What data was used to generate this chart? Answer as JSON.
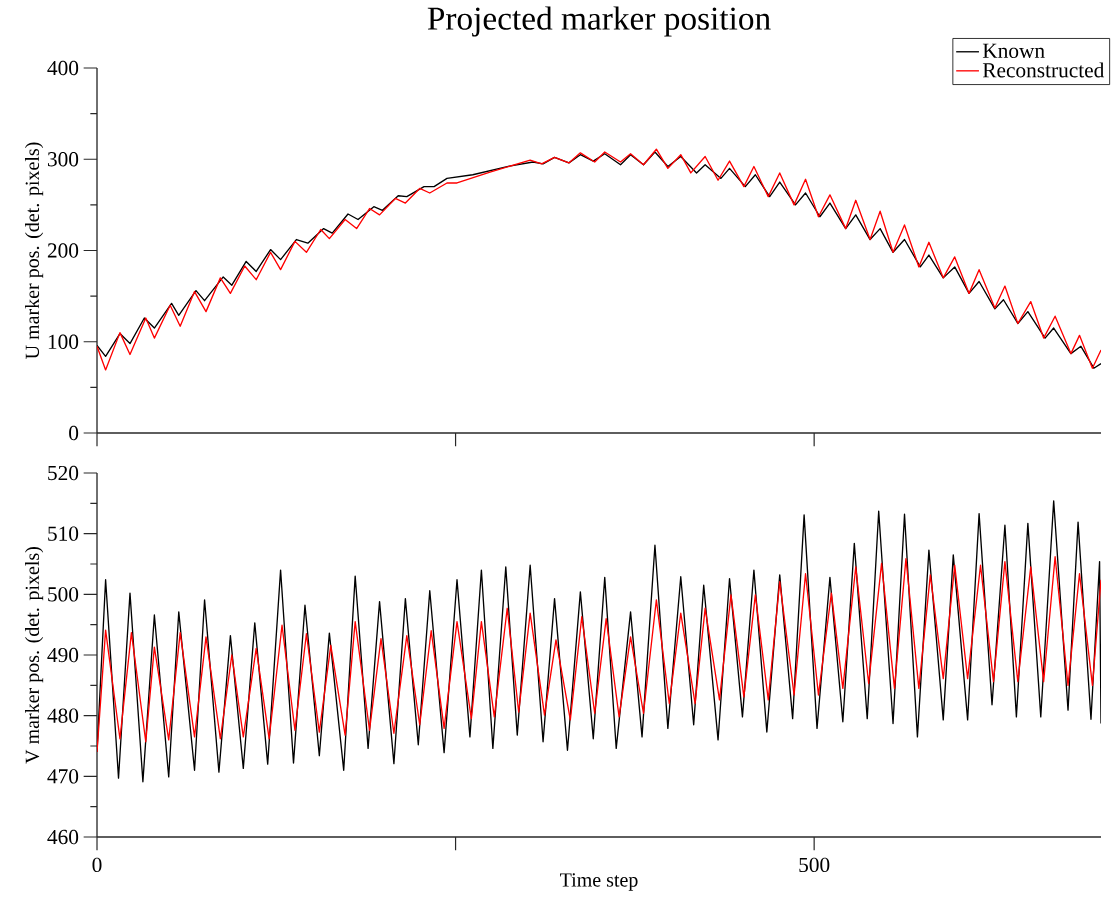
{
  "chart_data": [
    {
      "type": "line",
      "title": "Projected marker position",
      "ylabel": "U marker pos. (det. pixels)",
      "xlim": [
        0,
        700
      ],
      "xticks": [
        {
          "value": 0,
          "label": null
        },
        {
          "value": 250,
          "label": null
        },
        {
          "value": 500,
          "label": null
        }
      ],
      "ylim": [
        0,
        400
      ],
      "yticks": [
        0,
        100,
        200,
        300,
        400
      ],
      "tick_labels": "y",
      "legend": "top right",
      "series": [
        {
          "name": "Known",
          "color": "#000000",
          "x": [
            0,
            6,
            16,
            23,
            33,
            40,
            52,
            57,
            69,
            75,
            88,
            94,
            104,
            111,
            121,
            128,
            139,
            147,
            158,
            164,
            175,
            182,
            193,
            199,
            210,
            216,
            228,
            235,
            244,
            262,
            286,
            304,
            311,
            319,
            329,
            337,
            346,
            354,
            365,
            372,
            381,
            389,
            398,
            407,
            418,
            424,
            435,
            441,
            452,
            459,
            469,
            476,
            487,
            494,
            504,
            511,
            522,
            529,
            539,
            546,
            555,
            563,
            574,
            580,
            590,
            598,
            608,
            615,
            626,
            632,
            642,
            649,
            661,
            667,
            679,
            686,
            695,
            700
          ],
          "values": [
            96,
            84,
            109,
            98,
            126,
            115,
            142,
            129,
            156,
            145,
            171,
            162,
            188,
            177,
            201,
            190,
            212,
            208,
            224,
            219,
            240,
            234,
            248,
            244,
            260,
            259,
            270,
            270,
            279,
            283,
            292,
            297,
            295,
            302,
            296,
            305,
            298,
            306,
            294,
            305,
            294,
            308,
            292,
            303,
            285,
            294,
            279,
            290,
            270,
            283,
            259,
            275,
            250,
            263,
            237,
            252,
            224,
            239,
            212,
            224,
            198,
            212,
            182,
            195,
            170,
            182,
            153,
            166,
            136,
            146,
            120,
            133,
            104,
            115,
            87,
            95,
            71,
            76
          ]
        },
        {
          "name": "Reconstructed",
          "color": "#ff0000",
          "x": [
            0,
            6,
            16,
            23,
            34,
            40,
            51,
            58,
            68,
            76,
            86,
            93,
            103,
            111,
            121,
            128,
            138,
            146,
            156,
            162,
            173,
            181,
            190,
            197,
            208,
            215,
            225,
            232,
            244,
            251,
            274,
            302,
            310,
            319,
            329,
            337,
            347,
            354,
            365,
            372,
            381,
            390,
            398,
            407,
            414,
            424,
            433,
            441,
            451,
            458,
            468,
            476,
            486,
            494,
            503,
            511,
            522,
            529,
            539,
            546,
            555,
            563,
            573,
            580,
            590,
            598,
            608,
            615,
            626,
            633,
            642,
            651,
            660,
            668,
            679,
            685,
            694,
            700
          ],
          "values": [
            95,
            69,
            110,
            86,
            126,
            104,
            140,
            117,
            155,
            133,
            170,
            153,
            183,
            168,
            198,
            179,
            210,
            198,
            223,
            213,
            234,
            224,
            246,
            239,
            257,
            252,
            268,
            263,
            274,
            274,
            286,
            299,
            295,
            302,
            296,
            307,
            297,
            308,
            297,
            306,
            294,
            311,
            290,
            305,
            285,
            303,
            277,
            298,
            270,
            292,
            259,
            285,
            250,
            278,
            237,
            261,
            224,
            255,
            212,
            243,
            198,
            228,
            182,
            209,
            170,
            193,
            153,
            179,
            137,
            161,
            120,
            144,
            104,
            128,
            87,
            107,
            71,
            91
          ]
        }
      ]
    },
    {
      "type": "line",
      "xlabel": "Time step",
      "ylabel": "V marker pos. (det. pixels)",
      "xlim": [
        0,
        700
      ],
      "xticks": [
        0,
        {
          "value": 250,
          "label": null
        },
        500
      ],
      "ylim": [
        460,
        520
      ],
      "yticks": [
        460,
        470,
        480,
        490,
        500,
        510,
        520
      ],
      "series": [
        {
          "color": "#000000",
          "x": [
            0,
            6,
            15,
            23,
            32,
            40,
            50,
            57,
            68,
            75,
            85,
            93,
            102,
            110,
            119,
            128,
            137,
            145,
            155,
            162,
            172,
            180,
            189,
            197,
            207,
            215,
            224,
            232,
            242,
            251,
            260,
            268,
            276,
            285,
            293,
            302,
            311,
            319,
            328,
            337,
            346,
            354,
            362,
            372,
            380,
            389,
            398,
            407,
            416,
            423,
            433,
            441,
            450,
            458,
            467,
            476,
            485,
            493,
            502,
            511,
            520,
            528,
            537,
            545,
            555,
            563,
            572,
            580,
            590,
            597,
            607,
            615,
            624,
            633,
            641,
            649,
            658,
            667,
            677,
            684,
            693,
            699,
            700
          ],
          "values": [
            474,
            502.4,
            469.7,
            500.2,
            469.1,
            496.6,
            469.9,
            497.1,
            471.0,
            499.1,
            470.7,
            493.2,
            471.3,
            495.3,
            472.0,
            504.0,
            472.2,
            498.2,
            473.4,
            493.6,
            471.0,
            503.0,
            474.6,
            498.8,
            472.1,
            499.3,
            475.2,
            500.6,
            473.9,
            502.4,
            476.5,
            504.0,
            474.6,
            504.5,
            476.8,
            504.8,
            475.7,
            499.3,
            474.3,
            500.4,
            476.2,
            502.8,
            474.6,
            497.1,
            476.5,
            508.1,
            477.9,
            502.9,
            478.5,
            501.5,
            476.0,
            502.6,
            479.8,
            504.0,
            477.3,
            503.2,
            479.5,
            513.1,
            477.9,
            502.8,
            479.0,
            508.4,
            479.5,
            513.7,
            478.7,
            513.2,
            476.5,
            507.3,
            479.3,
            506.5,
            479.3,
            513.3,
            481.8,
            511.4,
            479.8,
            511.7,
            479.8,
            515.4,
            480.9,
            511.9,
            479.4,
            505.4,
            478.7
          ]
        },
        {
          "color": "#ff0000",
          "x": [
            0,
            6,
            16,
            24,
            34,
            40,
            50,
            58,
            68,
            76,
            86,
            94,
            102,
            111,
            120,
            129,
            138,
            146,
            155,
            163,
            173,
            180,
            190,
            198,
            207,
            216,
            225,
            233,
            242,
            251,
            261,
            268,
            277,
            286,
            294,
            302,
            312,
            320,
            330,
            338,
            347,
            355,
            364,
            372,
            381,
            390,
            399,
            407,
            417,
            424,
            434,
            442,
            451,
            459,
            468,
            476,
            486,
            494,
            503,
            512,
            520,
            529,
            538,
            547,
            556,
            564,
            573,
            581,
            590,
            598,
            607,
            616,
            625,
            633,
            642,
            651,
            660,
            668,
            677,
            685,
            694,
            700
          ],
          "values": [
            474,
            494.1,
            476.2,
            493.7,
            475.7,
            491.3,
            476.0,
            493.7,
            476.5,
            493.0,
            476.2,
            490.0,
            476.5,
            491.1,
            476.2,
            494.9,
            477.6,
            493.5,
            477.3,
            491.6,
            476.8,
            495.5,
            477.6,
            492.7,
            477.1,
            493.2,
            478.5,
            494.0,
            477.9,
            495.5,
            479.5,
            495.5,
            479.8,
            497.7,
            480.6,
            496.9,
            480.1,
            492.5,
            479.3,
            496.3,
            480.4,
            496.0,
            479.8,
            493.0,
            480.4,
            499.1,
            482.0,
            496.9,
            482.0,
            497.7,
            482.6,
            499.9,
            483.1,
            499.9,
            482.6,
            502.1,
            483.4,
            503.4,
            483.4,
            500.2,
            484.5,
            504.5,
            485.3,
            505.1,
            484.5,
            505.9,
            484.5,
            503.2,
            486.1,
            504.8,
            486.1,
            504.8,
            485.6,
            505.4,
            485.6,
            504.5,
            485.6,
            506.2,
            485.0,
            503.4,
            485.0,
            502.4
          ]
        }
      ]
    }
  ]
}
